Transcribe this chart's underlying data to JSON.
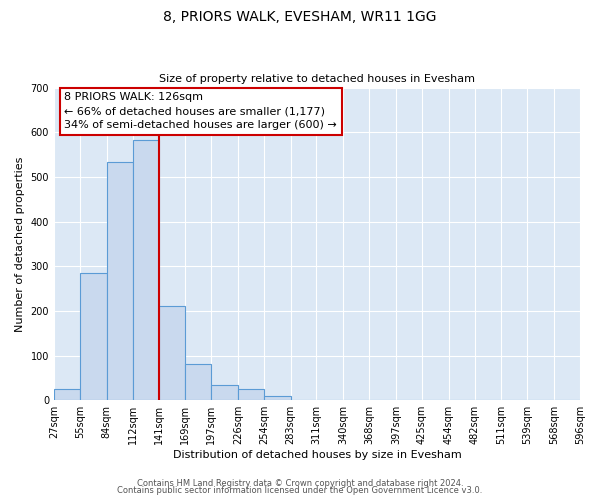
{
  "title": "8, PRIORS WALK, EVESHAM, WR11 1GG",
  "subtitle": "Size of property relative to detached houses in Evesham",
  "xlabel": "Distribution of detached houses by size in Evesham",
  "ylabel": "Number of detached properties",
  "bin_labels": [
    "27sqm",
    "55sqm",
    "84sqm",
    "112sqm",
    "141sqm",
    "169sqm",
    "197sqm",
    "226sqm",
    "254sqm",
    "283sqm",
    "311sqm",
    "340sqm",
    "368sqm",
    "397sqm",
    "425sqm",
    "454sqm",
    "482sqm",
    "511sqm",
    "539sqm",
    "568sqm",
    "596sqm"
  ],
  "bar_values": [
    25,
    284,
    534,
    582,
    210,
    80,
    35,
    25,
    10,
    0,
    0,
    0,
    0,
    0,
    0,
    0,
    0,
    0,
    0,
    0
  ],
  "bar_color": "#c9d9ee",
  "bar_edge_color": "#5b9bd5",
  "bin_edges": [
    27,
    55,
    84,
    112,
    141,
    169,
    197,
    226,
    254,
    283,
    311,
    340,
    368,
    397,
    425,
    454,
    482,
    511,
    539,
    568,
    596
  ],
  "ylim": [
    0,
    700
  ],
  "yticks": [
    0,
    100,
    200,
    300,
    400,
    500,
    600,
    700
  ],
  "annotation_title": "8 PRIORS WALK: 126sqm",
  "annotation_line1": "← 66% of detached houses are smaller (1,177)",
  "annotation_line2": "34% of semi-detached houses are larger (600) →",
  "annotation_box_color": "#ffffff",
  "annotation_box_edge": "#cc0000",
  "vline_color": "#cc0000",
  "footer_line1": "Contains HM Land Registry data © Crown copyright and database right 2024.",
  "footer_line2": "Contains public sector information licensed under the Open Government Licence v3.0.",
  "fig_background": "#ffffff",
  "plot_background": "#dce8f5",
  "grid_color": "#ffffff",
  "title_fontsize": 10,
  "subtitle_fontsize": 8,
  "ylabel_fontsize": 8,
  "xlabel_fontsize": 8,
  "tick_fontsize": 7
}
